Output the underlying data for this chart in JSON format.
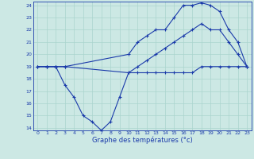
{
  "x_labels": [
    "0",
    "1",
    "2",
    "3",
    "4",
    "5",
    "6",
    "7",
    "8",
    "9",
    "10",
    "11",
    "12",
    "13",
    "14",
    "15",
    "16",
    "17",
    "18",
    "19",
    "20",
    "21",
    "22",
    "23"
  ],
  "x_range": [
    -0.5,
    23.5
  ],
  "y_range": [
    13.8,
    24.3
  ],
  "y_ticks": [
    14,
    15,
    16,
    17,
    18,
    19,
    20,
    21,
    22,
    23,
    24
  ],
  "xlabel": "Graphe des températures (°c)",
  "bg_color": "#cce8e4",
  "grid_color": "#aad4ce",
  "line_color": "#1a3aaa",
  "curve1_x": [
    0,
    1,
    2,
    3,
    10,
    11,
    12,
    13,
    14,
    15,
    16,
    17,
    18,
    19,
    20,
    21,
    22,
    23
  ],
  "curve1_y": [
    19,
    19,
    19,
    19,
    20,
    21,
    21.5,
    22,
    22,
    23,
    24,
    24,
    24.2,
    24,
    23.5,
    22,
    21,
    19
  ],
  "curve2_x": [
    0,
    1,
    2,
    3,
    10,
    11,
    12,
    13,
    14,
    15,
    16,
    17,
    18,
    19,
    20,
    21,
    22,
    23
  ],
  "curve2_y": [
    19,
    19,
    19,
    19,
    18.5,
    19,
    19.5,
    20,
    20.5,
    21,
    21.5,
    22,
    22.5,
    22,
    22,
    21,
    20,
    19
  ],
  "curve3_x": [
    0,
    1,
    2,
    3,
    4,
    5,
    6,
    7,
    8,
    9,
    10,
    11,
    12,
    13,
    14,
    15,
    16,
    17,
    18,
    19,
    20,
    21,
    22,
    23
  ],
  "curve3_y": [
    19,
    19,
    19,
    17.5,
    16.5,
    15,
    14.5,
    13.8,
    14.5,
    16.5,
    18.5,
    18.5,
    18.5,
    18.5,
    18.5,
    18.5,
    18.5,
    18.5,
    19,
    19,
    19,
    19,
    19,
    19
  ]
}
